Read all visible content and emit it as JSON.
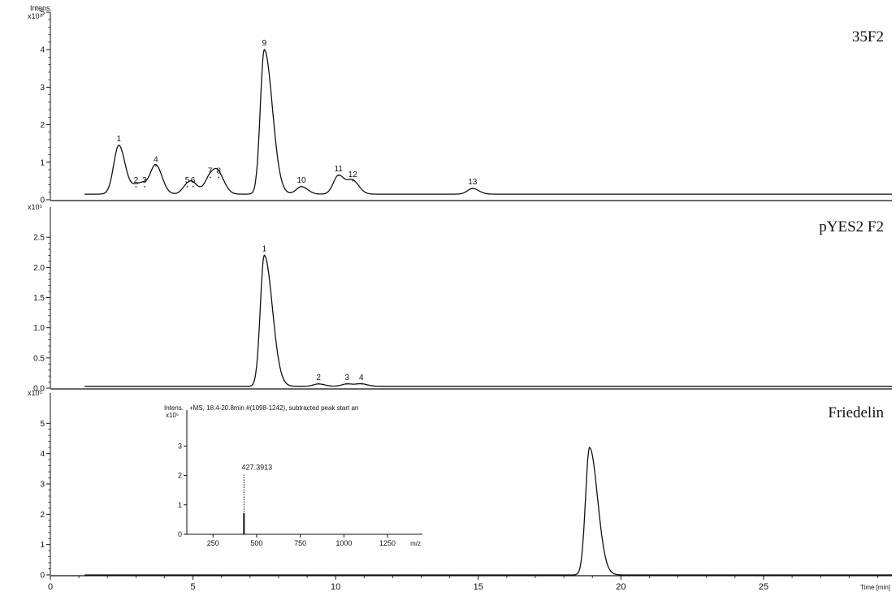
{
  "chart_data": [
    {
      "type": "line",
      "title": "35F2",
      "ylabel": "Intens.",
      "yscale_label": "x10⁴",
      "xlim": [
        0,
        29.5
      ],
      "ylim": [
        0,
        5
      ],
      "yticks": [
        0,
        1,
        2,
        3,
        4,
        5
      ],
      "ytick_labels": [
        "0",
        "1",
        "2",
        "3",
        "4",
        "5"
      ],
      "baseline": 0.15,
      "peaks": [
        {
          "label": "1",
          "x": 2.4,
          "y": 1.45
        },
        {
          "label": "2",
          "x": 3.0,
          "y": 0.35
        },
        {
          "label": "3",
          "x": 3.3,
          "y": 0.35
        },
        {
          "label": "4",
          "x": 3.7,
          "y": 0.9
        },
        {
          "label": "5",
          "x": 4.8,
          "y": 0.35
        },
        {
          "label": "6",
          "x": 5.0,
          "y": 0.35
        },
        {
          "label": "7",
          "x": 5.6,
          "y": 0.6
        },
        {
          "label": "8",
          "x": 5.9,
          "y": 0.6
        },
        {
          "label": "9",
          "x": 7.5,
          "y": 4.0
        },
        {
          "label": "10",
          "x": 8.8,
          "y": 0.35
        },
        {
          "label": "11",
          "x": 10.1,
          "y": 0.65
        },
        {
          "label": "12",
          "x": 10.6,
          "y": 0.5
        },
        {
          "label": "13",
          "x": 14.8,
          "y": 0.3
        }
      ]
    },
    {
      "type": "line",
      "title": "pYES2 F2",
      "yscale_label": "x10⁵",
      "xlim": [
        0,
        29.5
      ],
      "ylim": [
        0,
        3.0
      ],
      "yticks": [
        0,
        0.5,
        1.0,
        1.5,
        2.0,
        2.5
      ],
      "ytick_labels": [
        "0.0",
        "0.5",
        "1.0",
        "1.5",
        "2.0",
        "2.5"
      ],
      "baseline": 0.03,
      "peaks": [
        {
          "label": "1",
          "x": 7.5,
          "y": 2.2
        },
        {
          "label": "2",
          "x": 9.4,
          "y": 0.07
        },
        {
          "label": "3",
          "x": 10.4,
          "y": 0.07
        },
        {
          "label": "4",
          "x": 10.9,
          "y": 0.07
        }
      ]
    },
    {
      "type": "line",
      "title": "Friedelin",
      "yscale_label": "x10⁵",
      "xlabel": "Time [min]",
      "xlim": [
        0,
        29.5
      ],
      "ylim": [
        0,
        6
      ],
      "yticks": [
        0,
        1,
        2,
        3,
        4,
        5
      ],
      "ytick_labels": [
        "0",
        "1",
        "2",
        "3",
        "4",
        "5"
      ],
      "xticks": [
        0,
        5,
        10,
        15,
        20,
        25
      ],
      "baseline": 0.0,
      "peaks": [
        {
          "label": "",
          "x": 18.9,
          "y": 4.2
        }
      ],
      "inset": {
        "type": "bar",
        "title": "+MS, 18.4-20.8min #(1098-1242), subtracted peak start an",
        "ylabel": "Intens.",
        "yscale_label": "x10⁵",
        "xlabel": "m/z",
        "xlim": [
          100,
          1450
        ],
        "ylim": [
          0,
          4
        ],
        "xticks": [
          250,
          500,
          750,
          1000,
          1250
        ],
        "yticks": [
          0,
          1,
          2,
          3
        ],
        "points": [
          {
            "x": 427.3913,
            "y": 2.3,
            "label": "427.3913"
          }
        ]
      }
    }
  ]
}
